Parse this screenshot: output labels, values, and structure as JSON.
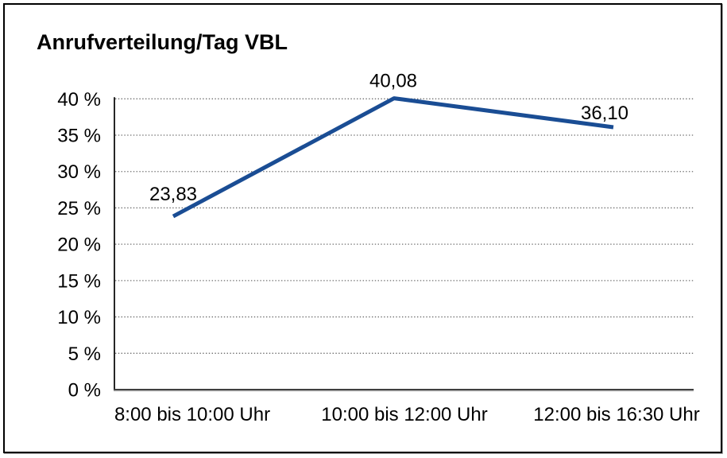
{
  "chart_data": {
    "type": "line",
    "title": "Anrufverteilung/Tag VBL",
    "categories": [
      "8:00 bis 10:00 Uhr",
      "10:00 bis 12:00 Uhr",
      "12:00 bis 16:30 Uhr"
    ],
    "values": [
      23.83,
      40.08,
      36.1
    ],
    "value_labels": [
      "23,83",
      "40,08",
      "36,10"
    ],
    "xlabel": "",
    "ylabel": "",
    "y_ticks": [
      0,
      5,
      10,
      15,
      20,
      25,
      30,
      35,
      40
    ],
    "y_tick_labels": [
      "0 %",
      "5 %",
      "10 %",
      "15 %",
      "20 %",
      "25 %",
      "30 %",
      "35 %",
      "40 %"
    ],
    "ylim": [
      0,
      40
    ],
    "grid": "horizontal-dotted",
    "legend": "none",
    "colors": {
      "line": "#1a4d94",
      "text": "#000000",
      "gridline": "#6e6e6e",
      "y_axis": "#262626",
      "x_axis": "#3f3f3f",
      "x_axis_shadow": "#ababab",
      "frame_border": "#000000",
      "background": "#ffffff"
    }
  }
}
